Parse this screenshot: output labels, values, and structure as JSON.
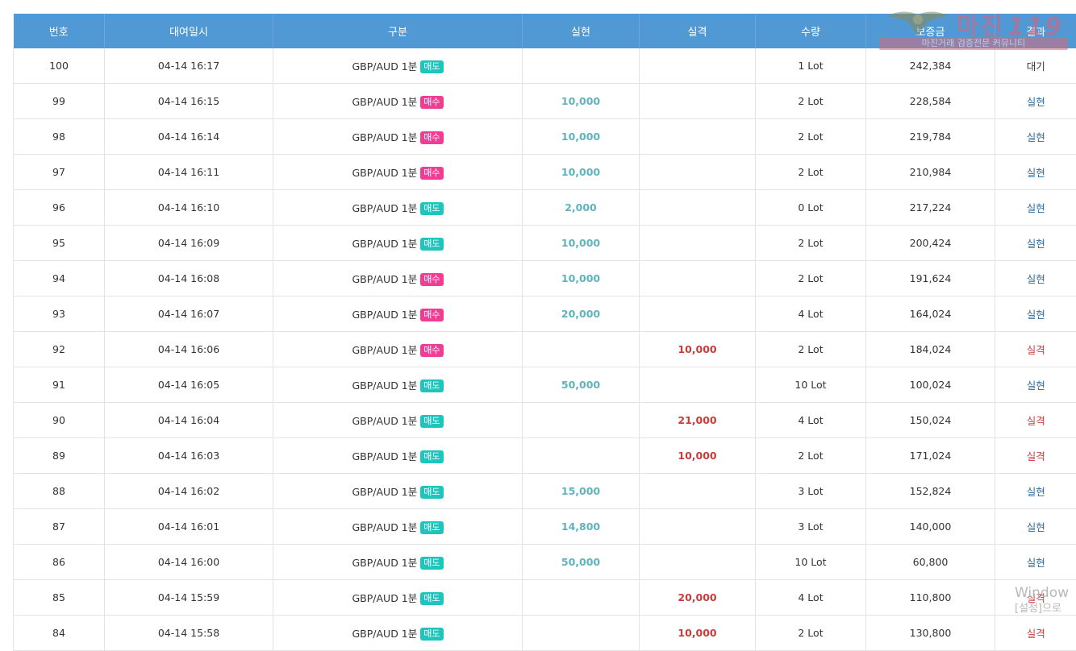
{
  "columns": [
    "번호",
    "대여일시",
    "구분",
    "실현",
    "실격",
    "수량",
    "보증금",
    "결과"
  ],
  "rows": [
    {
      "no": "100",
      "datetime": "04-14 16:17",
      "pair": "GBP/AUD 1분",
      "side": "매도",
      "side_type": "sell",
      "profit": "",
      "loss": "",
      "qty": "1 Lot",
      "deposit": "242,384",
      "result": "대기",
      "result_type": "wait"
    },
    {
      "no": "99",
      "datetime": "04-14 16:15",
      "pair": "GBP/AUD 1분",
      "side": "매수",
      "side_type": "buy",
      "profit": "10,000",
      "loss": "",
      "qty": "2 Lot",
      "deposit": "228,584",
      "result": "실현",
      "result_type": "win"
    },
    {
      "no": "98",
      "datetime": "04-14 16:14",
      "pair": "GBP/AUD 1분",
      "side": "매수",
      "side_type": "buy",
      "profit": "10,000",
      "loss": "",
      "qty": "2 Lot",
      "deposit": "219,784",
      "result": "실현",
      "result_type": "win"
    },
    {
      "no": "97",
      "datetime": "04-14 16:11",
      "pair": "GBP/AUD 1분",
      "side": "매수",
      "side_type": "buy",
      "profit": "10,000",
      "loss": "",
      "qty": "2 Lot",
      "deposit": "210,984",
      "result": "실현",
      "result_type": "win"
    },
    {
      "no": "96",
      "datetime": "04-14 16:10",
      "pair": "GBP/AUD 1분",
      "side": "매도",
      "side_type": "sell",
      "profit": "2,000",
      "loss": "",
      "qty": "0 Lot",
      "deposit": "217,224",
      "result": "실현",
      "result_type": "win"
    },
    {
      "no": "95",
      "datetime": "04-14 16:09",
      "pair": "GBP/AUD 1분",
      "side": "매도",
      "side_type": "sell",
      "profit": "10,000",
      "loss": "",
      "qty": "2 Lot",
      "deposit": "200,424",
      "result": "실현",
      "result_type": "win"
    },
    {
      "no": "94",
      "datetime": "04-14 16:08",
      "pair": "GBP/AUD 1분",
      "side": "매수",
      "side_type": "buy",
      "profit": "10,000",
      "loss": "",
      "qty": "2 Lot",
      "deposit": "191,624",
      "result": "실현",
      "result_type": "win"
    },
    {
      "no": "93",
      "datetime": "04-14 16:07",
      "pair": "GBP/AUD 1분",
      "side": "매수",
      "side_type": "buy",
      "profit": "20,000",
      "loss": "",
      "qty": "4 Lot",
      "deposit": "164,024",
      "result": "실현",
      "result_type": "win"
    },
    {
      "no": "92",
      "datetime": "04-14 16:06",
      "pair": "GBP/AUD 1분",
      "side": "매수",
      "side_type": "buy",
      "profit": "",
      "loss": "10,000",
      "qty": "2 Lot",
      "deposit": "184,024",
      "result": "실격",
      "result_type": "loss"
    },
    {
      "no": "91",
      "datetime": "04-14 16:05",
      "pair": "GBP/AUD 1분",
      "side": "매도",
      "side_type": "sell",
      "profit": "50,000",
      "loss": "",
      "qty": "10 Lot",
      "deposit": "100,024",
      "result": "실현",
      "result_type": "win"
    },
    {
      "no": "90",
      "datetime": "04-14 16:04",
      "pair": "GBP/AUD 1분",
      "side": "매도",
      "side_type": "sell",
      "profit": "",
      "loss": "21,000",
      "qty": "4 Lot",
      "deposit": "150,024",
      "result": "실격",
      "result_type": "loss"
    },
    {
      "no": "89",
      "datetime": "04-14 16:03",
      "pair": "GBP/AUD 1분",
      "side": "매도",
      "side_type": "sell",
      "profit": "",
      "loss": "10,000",
      "qty": "2 Lot",
      "deposit": "171,024",
      "result": "실격",
      "result_type": "loss"
    },
    {
      "no": "88",
      "datetime": "04-14 16:02",
      "pair": "GBP/AUD 1분",
      "side": "매도",
      "side_type": "sell",
      "profit": "15,000",
      "loss": "",
      "qty": "3 Lot",
      "deposit": "152,824",
      "result": "실현",
      "result_type": "win"
    },
    {
      "no": "87",
      "datetime": "04-14 16:01",
      "pair": "GBP/AUD 1분",
      "side": "매도",
      "side_type": "sell",
      "profit": "14,800",
      "loss": "",
      "qty": "3 Lot",
      "deposit": "140,000",
      "result": "실현",
      "result_type": "win"
    },
    {
      "no": "86",
      "datetime": "04-14 16:00",
      "pair": "GBP/AUD 1분",
      "side": "매도",
      "side_type": "sell",
      "profit": "50,000",
      "loss": "",
      "qty": "10 Lot",
      "deposit": "60,800",
      "result": "실현",
      "result_type": "win"
    },
    {
      "no": "85",
      "datetime": "04-14 15:59",
      "pair": "GBP/AUD 1분",
      "side": "매도",
      "side_type": "sell",
      "profit": "",
      "loss": "20,000",
      "qty": "4 Lot",
      "deposit": "110,800",
      "result": "실격",
      "result_type": "loss"
    },
    {
      "no": "84",
      "datetime": "04-14 15:58",
      "pair": "GBP/AUD 1분",
      "side": "매도",
      "side_type": "sell",
      "profit": "",
      "loss": "10,000",
      "qty": "2 Lot",
      "deposit": "130,800",
      "result": "실격",
      "result_type": "loss"
    }
  ],
  "colors": {
    "header_bg": "#5199d4",
    "sell_badge": "#1ec5bd",
    "buy_badge": "#f13c94",
    "profit_text": "#5fb3bd",
    "loss_text": "#c93c3c",
    "win_result": "#2c6a9e"
  },
  "watermark": {
    "title": "마진",
    "number": "119",
    "subtitle": "마진거래 검증전문 커뮤니티",
    "icon": "eagle-emblem-icon"
  },
  "windows_activation": {
    "line1": "Window",
    "line2": "[설정]으로"
  }
}
